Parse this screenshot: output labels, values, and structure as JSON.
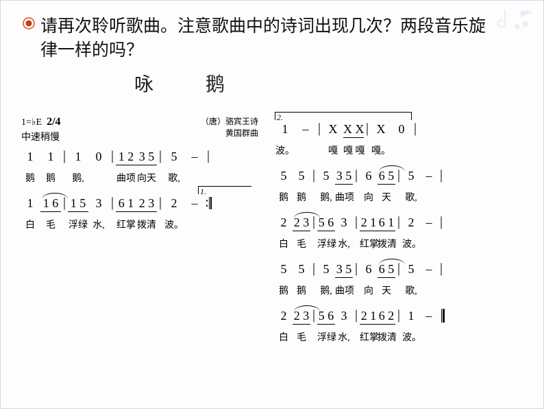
{
  "question": "请再次聆听歌曲。注意歌曲中的诗词出现几次？两段音乐旋律一样的吗？",
  "title": "咏　鹅",
  "meta": {
    "key": "1=♭E",
    "time_sig": "2/4",
    "tempo": "中速稍慢",
    "poet": "（唐）骆宾王诗",
    "composer": "黄国群曲"
  },
  "endings": {
    "first": "1.",
    "second": "2."
  },
  "left": {
    "line1": {
      "notes": [
        "1",
        "1",
        "|",
        "1",
        "0",
        "|",
        "1 2",
        "3 5",
        "|",
        "5",
        "–",
        "|"
      ],
      "beams": [
        0,
        0,
        0,
        0,
        0,
        0,
        1,
        1,
        0,
        0,
        0,
        0
      ],
      "lyrics": [
        "鹅",
        "鹅",
        "",
        "鹅,",
        "",
        "",
        "曲项",
        "向天",
        "",
        "歌,",
        "",
        ""
      ]
    },
    "line2": {
      "notes": [
        "1",
        "1 6",
        "|",
        "1 5",
        "3",
        "|",
        "6 1",
        "2 3",
        "|",
        "2",
        "–",
        ":|"
      ],
      "beams": [
        0,
        1,
        0,
        1,
        0,
        0,
        1,
        1,
        0,
        0,
        0,
        0
      ],
      "ties": [
        0,
        1,
        0,
        0,
        0,
        0,
        0,
        0,
        0,
        0,
        0,
        0
      ],
      "lyrics": [
        "白",
        "毛",
        "",
        "浮绿",
        "水,",
        "",
        "红掌",
        "拨清",
        "",
        "波。",
        "",
        ""
      ]
    }
  },
  "right": {
    "line1": {
      "notes": [
        "1",
        "–",
        "|",
        "X",
        "X  X",
        "|",
        "X",
        "0",
        "|"
      ],
      "beams": [
        0,
        0,
        0,
        0,
        1,
        0,
        0,
        0,
        0
      ],
      "lyrics": [
        "波。",
        "",
        "",
        "嘎",
        "嘎  嘎",
        "",
        "嘎。",
        "",
        ""
      ]
    },
    "line2": {
      "notes": [
        "5",
        "5",
        "|",
        "5",
        "3 5",
        "|",
        "6",
        "6 5",
        "|",
        "5",
        "–",
        "|"
      ],
      "beams": [
        0,
        0,
        0,
        0,
        1,
        0,
        0,
        1,
        0,
        0,
        0,
        0
      ],
      "ties": [
        0,
        0,
        0,
        0,
        0,
        0,
        0,
        1,
        0,
        0,
        0,
        0
      ],
      "lyrics": [
        "鹅",
        "鹅",
        "",
        "鹅,",
        "曲项",
        "",
        "向",
        "天",
        "",
        "歌,",
        "",
        ""
      ]
    },
    "line3": {
      "notes": [
        "2",
        "2 3",
        "|",
        "5 6",
        "3",
        "|",
        "2 1",
        "6 1",
        "|",
        "2",
        "–",
        "|"
      ],
      "beams": [
        0,
        1,
        0,
        1,
        0,
        0,
        1,
        1,
        0,
        0,
        0,
        0
      ],
      "ties": [
        0,
        1,
        0,
        0,
        0,
        0,
        0,
        0,
        0,
        0,
        0,
        0
      ],
      "lyrics": [
        "白",
        "毛",
        "",
        "浮绿",
        "水,",
        "",
        "红掌",
        "拨清",
        "",
        "波。",
        "",
        ""
      ]
    },
    "line4": {
      "notes": [
        "5",
        "5",
        "|",
        "5",
        "3 5",
        "|",
        "6",
        "6 5",
        "|",
        "5",
        "–",
        "|"
      ],
      "beams": [
        0,
        0,
        0,
        0,
        1,
        0,
        0,
        1,
        0,
        0,
        0,
        0
      ],
      "ties": [
        0,
        0,
        0,
        0,
        0,
        0,
        0,
        1,
        0,
        0,
        0,
        0
      ],
      "lyrics": [
        "鹅",
        "鹅",
        "",
        "鹅,",
        "曲项",
        "",
        "向",
        "天",
        "",
        "歌,",
        "",
        ""
      ]
    },
    "line5": {
      "notes": [
        "2",
        "2 3",
        "|",
        "5 6",
        "3",
        "|",
        "2 1",
        "6 2",
        "|",
        "1",
        "–",
        "‖"
      ],
      "beams": [
        0,
        1,
        0,
        1,
        0,
        0,
        1,
        1,
        0,
        0,
        0,
        0
      ],
      "ties": [
        0,
        1,
        0,
        0,
        0,
        0,
        0,
        0,
        0,
        0,
        0,
        0
      ],
      "lyrics": [
        "白",
        "毛",
        "",
        "浮绿",
        "水,",
        "",
        "红掌",
        "拨清",
        "",
        "波。",
        "",
        ""
      ]
    }
  },
  "colors": {
    "bullet_outer": "#d94f1a",
    "bullet_inner": "#c9371e",
    "deco": "#b8cfe8"
  }
}
